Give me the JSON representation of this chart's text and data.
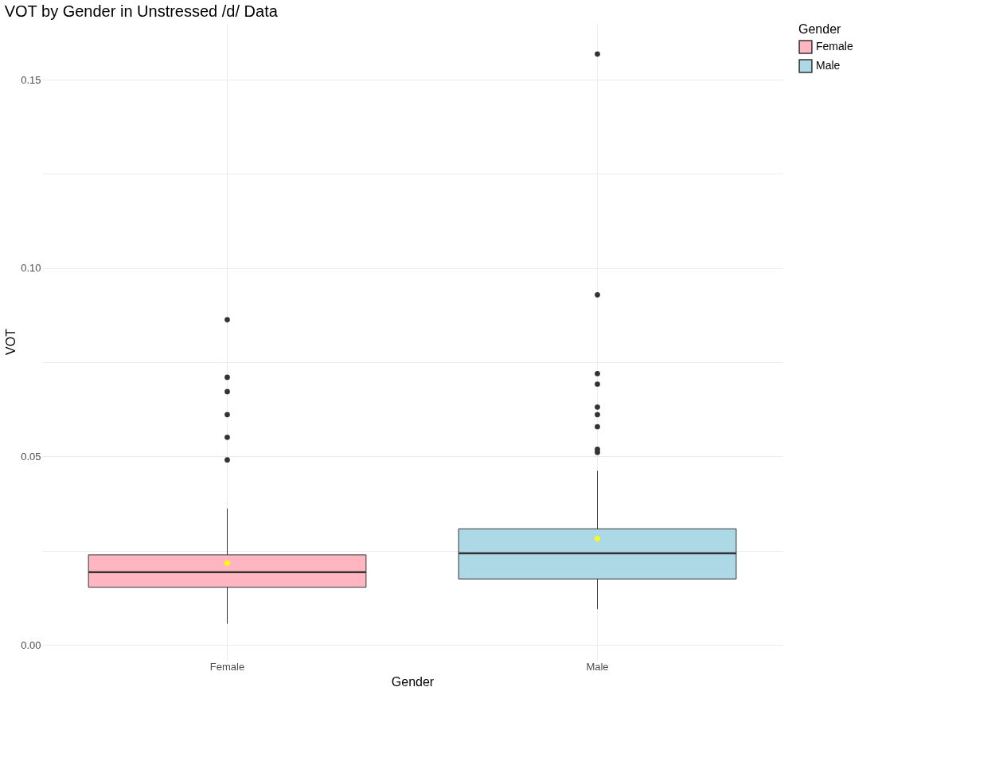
{
  "chart_data": {
    "type": "box",
    "title": "VOT by Gender in Unstressed /d/ Data",
    "xlabel": "Gender",
    "ylabel": "VOT",
    "legend_title": "Gender",
    "legend": "right",
    "grid": true,
    "categories": [
      "Female",
      "Male"
    ],
    "series": [
      {
        "name": "Female",
        "color": "#ffb6c1",
        "boxes": [
          {
            "low": 0.0056,
            "q1": 0.0153,
            "median": 0.0193,
            "q3": 0.0239,
            "high": 0.0362,
            "mean": 0.0217,
            "outliers": [
              0.0863,
              0.071,
              0.0672,
              0.0611,
              0.0551,
              0.0491
            ]
          },
          null
        ]
      },
      {
        "name": "Male",
        "color": "#add8e6",
        "boxes": [
          null,
          {
            "low": 0.0095,
            "q1": 0.0175,
            "median": 0.0243,
            "q3": 0.0308,
            "high": 0.0462,
            "mean": 0.0282,
            "outliers": [
              0.1568,
              0.0929,
              0.072,
              0.0692,
              0.0631,
              0.0611,
              0.0579,
              0.0519,
              0.0511
            ]
          }
        ]
      }
    ],
    "ylim": [
      -0.004,
      0.165
    ],
    "yticks": [
      {
        "value": 0,
        "label": "0.00"
      },
      {
        "value": 0.025,
        "label": null
      },
      {
        "value": 0.05,
        "label": "0.05"
      },
      {
        "value": 0.075,
        "label": null
      },
      {
        "value": 0.1,
        "label": "0.10"
      },
      {
        "value": 0.125,
        "label": null
      },
      {
        "value": 0.15,
        "label": "0.15"
      }
    ]
  }
}
